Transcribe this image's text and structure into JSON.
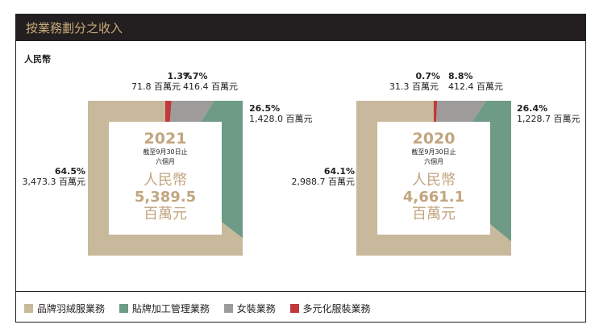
{
  "title": "按業務劃分之收入",
  "currency": "人民幣",
  "colors": {
    "brand": "#c8b89c",
    "oem": "#6d9b85",
    "womens": "#9e9b9b",
    "diversified": "#c0393b",
    "title_bg": "#231f20",
    "gold": "#c2a57f"
  },
  "legend": [
    {
      "label": "品牌羽絨服業務",
      "color": "#c8b89c"
    },
    {
      "label": "貼牌加工管理業務",
      "color": "#6d9b85"
    },
    {
      "label": "女裝業務",
      "color": "#9e9b9b"
    },
    {
      "label": "多元化服裝業務",
      "color": "#c0393b"
    }
  ],
  "chart_data": [
    {
      "type": "pie",
      "center": {
        "year": "2021",
        "line1": "截至9月30日止",
        "line2": "六個月",
        "currency": "人民幣",
        "total": "5,389.5",
        "unit": "百萬元"
      },
      "slices": [
        {
          "key": "diversified",
          "pct": 1.3,
          "pct_label": "1.3%",
          "value_label": "71.8 百萬元"
        },
        {
          "key": "womens",
          "pct": 7.7,
          "pct_label": "7.7%",
          "value_label": "416.4 百萬元"
        },
        {
          "key": "oem",
          "pct": 26.5,
          "pct_label": "26.5%",
          "value_label": "1,428.0 百萬元"
        },
        {
          "key": "brand",
          "pct": 64.5,
          "pct_label": "64.5%",
          "value_label": "3,473.3 百萬元"
        }
      ]
    },
    {
      "type": "pie",
      "center": {
        "year": "2020",
        "line1": "截至9月30日止",
        "line2": "六個月",
        "currency": "人民幣",
        "total": "4,661.1",
        "unit": "百萬元"
      },
      "slices": [
        {
          "key": "diversified",
          "pct": 0.7,
          "pct_label": "0.7%",
          "value_label": "31.3 百萬元"
        },
        {
          "key": "womens",
          "pct": 8.8,
          "pct_label": "8.8%",
          "value_label": "412.4 百萬元"
        },
        {
          "key": "oem",
          "pct": 26.4,
          "pct_label": "26.4%",
          "value_label": "1,228.7 百萬元"
        },
        {
          "key": "brand",
          "pct": 64.1,
          "pct_label": "64.1%",
          "value_label": "2,988.7 百萬元"
        }
      ]
    }
  ]
}
